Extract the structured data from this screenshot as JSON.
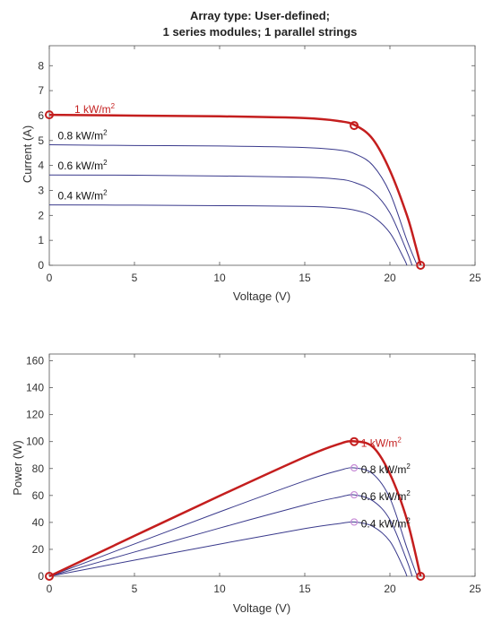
{
  "chart_data": [
    {
      "type": "line",
      "title": [
        "Array type: User-defined;",
        "1 series modules; 1 parallel strings"
      ],
      "xlabel": "Voltage (V)",
      "ylabel": "Current (A)",
      "xlim": [
        0,
        25
      ],
      "ylim": [
        0,
        8.8
      ],
      "xticks": [
        0,
        5,
        10,
        15,
        20,
        25
      ],
      "yticks": [
        0,
        1,
        2,
        3,
        4,
        5,
        6,
        7,
        8
      ],
      "grid": false,
      "series": [
        {
          "name": "1 kW/m2",
          "label": "1 kW/m",
          "sup": "2",
          "color": "#c41e1e",
          "width": 2.5,
          "x": [
            0,
            5,
            10,
            15,
            17,
            18,
            19,
            20,
            21,
            21.5,
            21.8
          ],
          "y": [
            6.03,
            6.0,
            5.97,
            5.9,
            5.78,
            5.6,
            5.05,
            3.8,
            2.0,
            0.8,
            0.0
          ],
          "markers": [
            [
              0,
              6.03
            ],
            [
              17.9,
              5.6
            ],
            [
              21.8,
              0
            ]
          ]
        },
        {
          "name": "0.8 kW/m2",
          "label": "0.8 kW/m",
          "sup": "2",
          "color": "#3a3a8c",
          "width": 1,
          "x": [
            0,
            5,
            10,
            15,
            17,
            18,
            19,
            20,
            21,
            21.6
          ],
          "y": [
            4.83,
            4.8,
            4.78,
            4.72,
            4.62,
            4.45,
            4.0,
            2.9,
            1.0,
            0.0
          ]
        },
        {
          "name": "0.6 kW/m2",
          "label": "0.6 kW/m",
          "sup": "2",
          "color": "#3a3a8c",
          "width": 1,
          "x": [
            0,
            5,
            10,
            15,
            17,
            18,
            19,
            20,
            21,
            21.3
          ],
          "y": [
            3.62,
            3.61,
            3.58,
            3.53,
            3.45,
            3.3,
            2.95,
            2.1,
            0.55,
            0.0
          ]
        },
        {
          "name": "0.4 kW/m2",
          "label": "0.4 kW/m",
          "sup": "2",
          "color": "#3a3a8c",
          "width": 1,
          "x": [
            0,
            5,
            10,
            15,
            17,
            18,
            19,
            20,
            20.8,
            21.0
          ],
          "y": [
            2.42,
            2.41,
            2.39,
            2.36,
            2.3,
            2.2,
            1.95,
            1.3,
            0.3,
            0.0
          ]
        }
      ]
    },
    {
      "type": "line",
      "xlabel": "Voltage (V)",
      "ylabel": "Power (W)",
      "xlim": [
        0,
        25
      ],
      "ylim": [
        0,
        165
      ],
      "xticks": [
        0,
        5,
        10,
        15,
        20,
        25
      ],
      "yticks": [
        0,
        20,
        40,
        60,
        80,
        100,
        120,
        140,
        160
      ],
      "grid": false,
      "series": [
        {
          "name": "1 kW/m2",
          "label": "1 kW/m",
          "sup": "2",
          "color": "#c41e1e",
          "width": 2.5,
          "x": [
            0,
            5,
            10,
            15,
            17,
            17.9,
            19,
            20,
            21,
            21.8
          ],
          "y": [
            0,
            30,
            59.7,
            88.5,
            98.2,
            100.2,
            96,
            76,
            42,
            0
          ],
          "markers": [
            [
              0,
              0
            ],
            [
              17.9,
              100
            ],
            [
              21.8,
              0
            ]
          ]
        },
        {
          "name": "0.8 kW/m2",
          "label": "0.8 kW/m",
          "sup": "2",
          "color": "#3a3a8c",
          "width": 1,
          "x": [
            0,
            5,
            10,
            15,
            17,
            17.9,
            19,
            20,
            21,
            21.6
          ],
          "y": [
            0,
            24,
            47.8,
            70.8,
            78.5,
            80.5,
            76,
            58,
            21,
            0
          ],
          "markers": [
            [
              17.9,
              80.5
            ]
          ]
        },
        {
          "name": "0.6 kW/m2",
          "label": "0.6 kW/m",
          "sup": "2",
          "color": "#3a3a8c",
          "width": 1,
          "x": [
            0,
            5,
            10,
            15,
            17,
            17.9,
            19,
            20,
            21,
            21.3
          ],
          "y": [
            0,
            18,
            35.8,
            53,
            58.7,
            60.5,
            56,
            42,
            11.5,
            0
          ],
          "markers": [
            [
              17.9,
              60.5
            ]
          ]
        },
        {
          "name": "0.4 kW/m2",
          "label": "0.4 kW/m",
          "sup": "2",
          "color": "#3a3a8c",
          "width": 1,
          "x": [
            0,
            5,
            10,
            15,
            17,
            17.9,
            19,
            20,
            20.8,
            21.0
          ],
          "y": [
            0,
            12,
            23.9,
            35.4,
            39.1,
            40.3,
            37,
            26,
            6.2,
            0
          ],
          "markers": [
            [
              17.9,
              40.3
            ]
          ]
        }
      ]
    }
  ]
}
